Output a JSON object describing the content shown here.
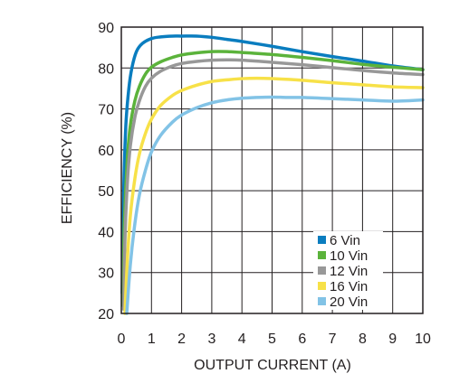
{
  "chart_data": {
    "type": "line",
    "title": "",
    "xlabel": "OUTPUT CURRENT (A)",
    "ylabel": "EFFICIENCY (%)",
    "xlim": [
      0,
      10
    ],
    "ylim": [
      20,
      90
    ],
    "xticks": [
      0,
      1,
      2,
      3,
      4,
      5,
      6,
      7,
      8,
      9,
      10
    ],
    "yticks": [
      20,
      30,
      40,
      50,
      60,
      70,
      80,
      90
    ],
    "grid": true,
    "legend_position": "bottom-right",
    "series": [
      {
        "name": "6 Vin",
        "color": "#0a7dbf",
        "x": [
          0.03,
          0.08,
          0.15,
          0.25,
          0.35,
          0.5,
          0.7,
          1.0,
          1.3,
          1.7,
          2.0,
          2.5,
          3.0,
          3.5,
          4.0,
          5.0,
          6.0,
          7.0,
          8.0,
          9.0,
          10.0
        ],
        "y": [
          25,
          50,
          66,
          75,
          80,
          84,
          86,
          87.2,
          87.6,
          87.8,
          87.8,
          87.8,
          87.5,
          87.0,
          86.5,
          85.3,
          84.0,
          82.8,
          81.7,
          80.5,
          79.6
        ]
      },
      {
        "name": "10 Vin",
        "color": "#5bb33b",
        "x": [
          0.05,
          0.1,
          0.2,
          0.3,
          0.45,
          0.6,
          0.8,
          1.0,
          1.3,
          1.7,
          2.0,
          2.5,
          3.0,
          3.5,
          4.0,
          5.0,
          6.0,
          7.0,
          8.0,
          9.0,
          10.0
        ],
        "y": [
          22,
          42,
          58,
          66,
          72,
          75.5,
          78.5,
          80.2,
          81.5,
          82.6,
          83.2,
          83.7,
          84.0,
          84.0,
          83.8,
          83.3,
          82.6,
          81.8,
          80.9,
          80.2,
          79.6
        ]
      },
      {
        "name": "12 Vin",
        "color": "#989898",
        "x": [
          0.08,
          0.12,
          0.2,
          0.3,
          0.45,
          0.6,
          0.8,
          1.0,
          1.3,
          1.7,
          2.0,
          2.5,
          3.0,
          3.5,
          4.0,
          5.0,
          6.0,
          7.0,
          8.0,
          9.0,
          10.0
        ],
        "y": [
          21,
          38,
          52,
          61,
          68,
          72,
          75.5,
          77.5,
          79.2,
          80.5,
          81.1,
          81.6,
          81.9,
          82.0,
          81.9,
          81.4,
          80.8,
          80.1,
          79.4,
          78.8,
          78.4
        ]
      },
      {
        "name": "16 Vin",
        "color": "#f7e148",
        "x": [
          0.12,
          0.2,
          0.3,
          0.45,
          0.6,
          0.8,
          1.0,
          1.3,
          1.7,
          2.0,
          2.5,
          3.0,
          3.5,
          4.0,
          4.5,
          5.0,
          6.0,
          7.0,
          8.0,
          9.0,
          10.0
        ],
        "y": [
          20,
          33,
          44,
          53,
          59,
          64,
          67.5,
          70.8,
          73.3,
          74.5,
          75.8,
          76.7,
          77.1,
          77.4,
          77.5,
          77.4,
          77.0,
          76.4,
          75.9,
          75.4,
          75.2
        ]
      },
      {
        "name": "20 Vin",
        "color": "#82c3e6",
        "x": [
          0.18,
          0.3,
          0.45,
          0.6,
          0.8,
          1.0,
          1.3,
          1.7,
          2.0,
          2.5,
          3.0,
          3.5,
          4.0,
          4.5,
          5.0,
          5.5,
          6.0,
          7.0,
          8.0,
          9.0,
          10.0
        ],
        "y": [
          20,
          32,
          42,
          49,
          55,
          59.5,
          63.5,
          66.8,
          68.5,
          70.3,
          71.5,
          72.2,
          72.6,
          72.8,
          72.9,
          72.8,
          72.8,
          72.5,
          72.2,
          71.9,
          72.2
        ]
      }
    ]
  }
}
